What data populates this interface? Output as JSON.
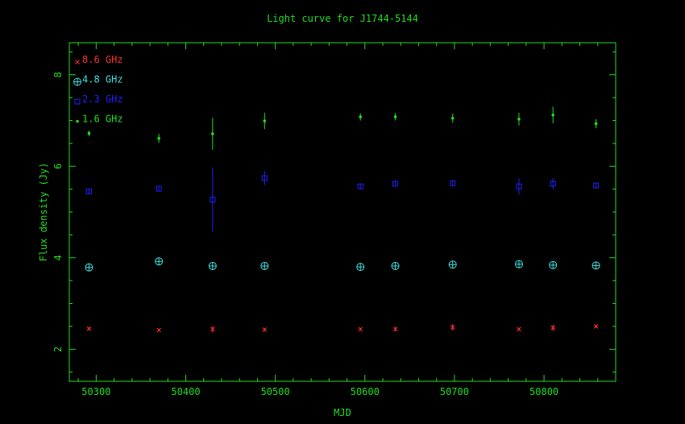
{
  "colors": {
    "frame": "#22dd22",
    "title": "#22dd22",
    "s86": "#ff3030",
    "s48": "#40e0e0",
    "s23": "#2020ff",
    "s16": "#22dd22"
  },
  "chart_data": {
    "type": "scatter",
    "title": "Light curve for J1744-5144",
    "xlabel": "MJD",
    "ylabel": "Flux density (Jy)",
    "xlim": [
      50270,
      50880
    ],
    "ylim": [
      1.3,
      8.7
    ],
    "x_ticks": [
      50300,
      50400,
      50500,
      50600,
      50700,
      50800
    ],
    "y_ticks": [
      2,
      4,
      6,
      8
    ],
    "legend_position": "top-left",
    "series": [
      {
        "name": "8.6 GHz",
        "marker": "cross",
        "color_key": "s86",
        "points": [
          {
            "x": 50292,
            "y": 2.45,
            "err": 0.03
          },
          {
            "x": 50370,
            "y": 2.42,
            "err": 0.03
          },
          {
            "x": 50430,
            "y": 2.44,
            "err": 0.07
          },
          {
            "x": 50488,
            "y": 2.43,
            "err": 0.03
          },
          {
            "x": 50595,
            "y": 2.44,
            "err": 0.03
          },
          {
            "x": 50634,
            "y": 2.44,
            "err": 0.05
          },
          {
            "x": 50698,
            "y": 2.48,
            "err": 0.07
          },
          {
            "x": 50772,
            "y": 2.44,
            "err": 0.03
          },
          {
            "x": 50810,
            "y": 2.47,
            "err": 0.07
          },
          {
            "x": 50858,
            "y": 2.5,
            "err": 0.03
          }
        ]
      },
      {
        "name": "4.8 GHz",
        "marker": "circle-plus",
        "color_key": "s48",
        "points": [
          {
            "x": 50292,
            "y": 3.79,
            "err": 0.0
          },
          {
            "x": 50370,
            "y": 3.92,
            "err": 0.0
          },
          {
            "x": 50430,
            "y": 3.82,
            "err": 0.0
          },
          {
            "x": 50488,
            "y": 3.82,
            "err": 0.0
          },
          {
            "x": 50595,
            "y": 3.8,
            "err": 0.0
          },
          {
            "x": 50634,
            "y": 3.82,
            "err": 0.0
          },
          {
            "x": 50698,
            "y": 3.85,
            "err": 0.0
          },
          {
            "x": 50772,
            "y": 3.86,
            "err": 0.0
          },
          {
            "x": 50810,
            "y": 3.84,
            "err": 0.0
          },
          {
            "x": 50858,
            "y": 3.83,
            "err": 0.0
          }
        ]
      },
      {
        "name": "2.3 GHz",
        "marker": "square",
        "color_key": "s23",
        "points": [
          {
            "x": 50292,
            "y": 5.45,
            "err": 0.06
          },
          {
            "x": 50370,
            "y": 5.51,
            "err": 0.06
          },
          {
            "x": 50430,
            "y": 5.27,
            "err": 0.7
          },
          {
            "x": 50488,
            "y": 5.74,
            "err": 0.15
          },
          {
            "x": 50595,
            "y": 5.56,
            "err": 0.06
          },
          {
            "x": 50634,
            "y": 5.62,
            "err": 0.06
          },
          {
            "x": 50698,
            "y": 5.63,
            "err": 0.06
          },
          {
            "x": 50772,
            "y": 5.56,
            "err": 0.18
          },
          {
            "x": 50810,
            "y": 5.62,
            "err": 0.12
          },
          {
            "x": 50858,
            "y": 5.58,
            "err": 0.06
          }
        ]
      },
      {
        "name": "1.6 GHz",
        "marker": "dot",
        "color_key": "s16",
        "points": [
          {
            "x": 50292,
            "y": 6.72,
            "err": 0.06
          },
          {
            "x": 50370,
            "y": 6.61,
            "err": 0.1
          },
          {
            "x": 50430,
            "y": 6.71,
            "err": 0.35
          },
          {
            "x": 50488,
            "y": 6.99,
            "err": 0.18
          },
          {
            "x": 50595,
            "y": 7.08,
            "err": 0.08
          },
          {
            "x": 50634,
            "y": 7.08,
            "err": 0.08
          },
          {
            "x": 50698,
            "y": 7.05,
            "err": 0.1
          },
          {
            "x": 50772,
            "y": 7.03,
            "err": 0.14
          },
          {
            "x": 50810,
            "y": 7.12,
            "err": 0.18
          },
          {
            "x": 50858,
            "y": 6.93,
            "err": 0.1
          }
        ]
      }
    ]
  }
}
